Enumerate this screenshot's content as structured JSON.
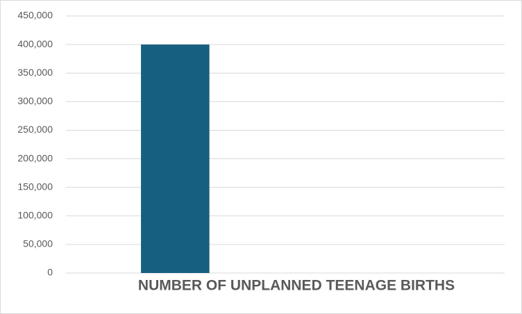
{
  "chart_data": {
    "type": "bar",
    "categories": [
      "NUMBER OF UNPLANNED TEENAGE BIRTHS"
    ],
    "values": [
      400000
    ],
    "color": "#175f81",
    "ylim": [
      0,
      450000
    ],
    "yticks": [
      0,
      {
        "value": 50000,
        "label": "50,000"
      },
      {
        "value": 100000,
        "label": "100,000"
      },
      {
        "value": 150000,
        "label": "150,000"
      },
      {
        "value": 200000,
        "label": "200,000"
      },
      {
        "value": 250000,
        "label": "250,000"
      },
      {
        "value": 300000,
        "label": "300,000"
      },
      {
        "value": 350000,
        "label": "350,000"
      },
      {
        "value": 400000,
        "label": "400,000"
      },
      {
        "value": 450000,
        "label": "450,000"
      }
    ],
    "grid": true
  }
}
